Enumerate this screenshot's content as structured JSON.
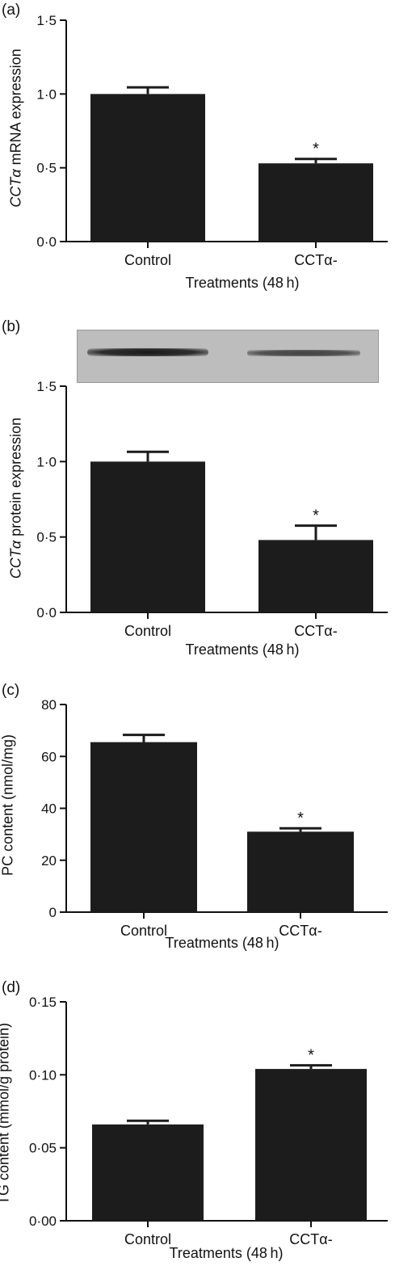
{
  "chart_data": [
    {
      "type": "bar",
      "panel_label": "(a)",
      "categories": [
        "Control",
        "CCTα-"
      ],
      "values": [
        1.0,
        0.53
      ],
      "errors": [
        0.045,
        0.03
      ],
      "significance": [
        "",
        "*"
      ],
      "ylabel_italic": "CCTα",
      "ylabel_rest": " mRNA expression",
      "xlabel": "Treatments (48 h)",
      "ylim": [
        0,
        1.5
      ],
      "yticks": [
        0,
        0.5,
        1.0,
        1.5
      ],
      "ytick_labels": [
        "0·0",
        "0·5",
        "1·0",
        "1·5"
      ],
      "grid": false
    },
    {
      "type": "bar",
      "panel_label": "(b)",
      "categories": [
        "Control",
        "CCTα-"
      ],
      "values": [
        1.0,
        0.48
      ],
      "errors": [
        0.065,
        0.095
      ],
      "significance": [
        "",
        "*"
      ],
      "ylabel_italic": "CCTα",
      "ylabel_rest": " protein expression",
      "xlabel": "Treatments (48 h)",
      "ylim": [
        0,
        1.5
      ],
      "yticks": [
        0,
        0.5,
        1.0,
        1.5
      ],
      "ytick_labels": [
        "0·0",
        "0·5",
        "1·0",
        "1·5"
      ],
      "grid": false,
      "blot_band_intensity": [
        1.0,
        0.55
      ]
    },
    {
      "type": "bar",
      "panel_label": "(c)",
      "categories": [
        "Control",
        "CCTα-"
      ],
      "values": [
        65.5,
        31
      ],
      "errors": [
        2.8,
        1.3
      ],
      "significance": [
        "",
        "*"
      ],
      "ylabel_italic": "",
      "ylabel_rest": "PC content (nmol/mg)",
      "xlabel": "Treatments (48 h)",
      "ylim": [
        0,
        80
      ],
      "yticks": [
        0,
        20,
        40,
        60,
        80
      ],
      "ytick_labels": [
        "0",
        "20",
        "40",
        "60",
        "80"
      ],
      "grid": false
    },
    {
      "type": "bar",
      "panel_label": "(d)",
      "categories": [
        "Control",
        "CCTα-"
      ],
      "values": [
        0.066,
        0.104
      ],
      "errors": [
        0.0025,
        0.0025
      ],
      "significance": [
        "",
        "*"
      ],
      "ylabel_italic": "",
      "ylabel_rest": "TG content (mmol/g protein)",
      "xlabel": "Treatments (48 h)",
      "ylim": [
        0,
        0.15
      ],
      "yticks": [
        0,
        0.05,
        0.1,
        0.15
      ],
      "ytick_labels": [
        "0·00",
        "0·05",
        "0·10",
        "0·15"
      ],
      "grid": false
    }
  ],
  "colors": {
    "bar": "#1c1c1c",
    "axis": "#111111"
  }
}
